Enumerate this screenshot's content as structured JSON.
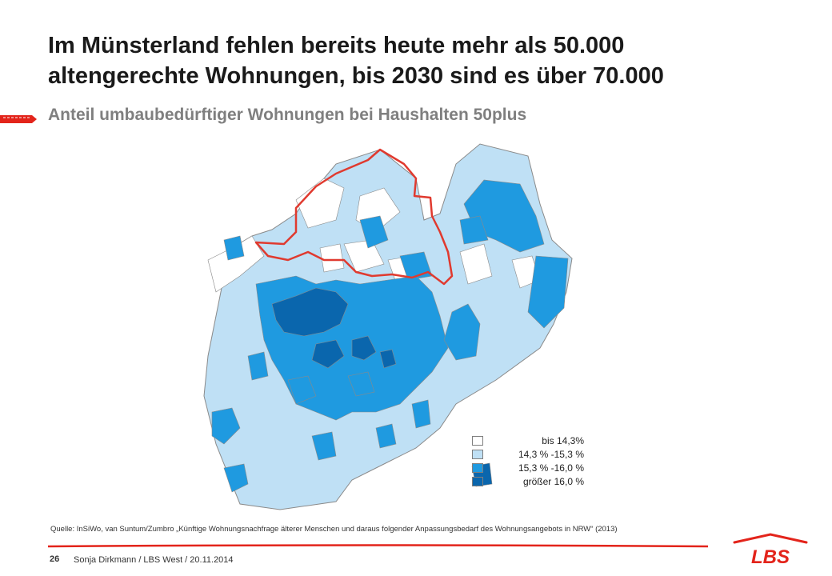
{
  "slide": {
    "title_line1": "Im Münsterland fehlen bereits heute mehr als 50.000",
    "title_line2": "altengerechte Wohnungen, bis 2030 sind es über 70.000",
    "subtitle": "Anteil umbaubedürftiger Wohnungen bei Haushalten 50plus"
  },
  "legend": {
    "items": [
      {
        "label": "bis 14,3%",
        "color": "#ffffff"
      },
      {
        "label": "14,3 % -15,3 %",
        "color": "#bfe0f5"
      },
      {
        "label": "15,3 % -16,0 %",
        "color": "#1f9ae0"
      },
      {
        "label": "größer 16,0 %",
        "color": "#0a66ad"
      }
    ]
  },
  "map": {
    "highlight_region_color": "#e03a2f",
    "border_color": "#8a8a8a"
  },
  "source": "Quelle: InSiWo, van Suntum/Zumbro „Künftige Wohnungsnachfrage älterer Menschen und daraus folgender Anpassungsbedarf des Wohnungsangebots in NRW“ (2013)",
  "footer": {
    "page_number": "26",
    "text": "Sonja Dirkmann / LBS West / 20.11.2014"
  },
  "logo": {
    "text": "LBS",
    "color": "#e3241b"
  }
}
